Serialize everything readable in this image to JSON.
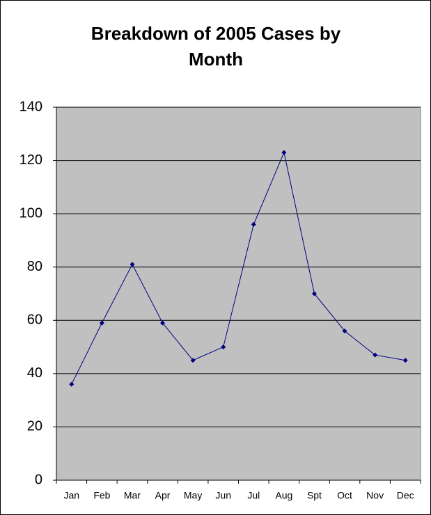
{
  "chart_data": {
    "type": "line",
    "title": "Breakdown of 2005 Cases by Month",
    "categories": [
      "Jan",
      "Feb",
      "Mar",
      "Apr",
      "May",
      "Jun",
      "Jul",
      "Aug",
      "Spt",
      "Oct",
      "Nov",
      "Dec"
    ],
    "values": [
      36,
      59,
      81,
      59,
      45,
      50,
      96,
      123,
      70,
      56,
      47,
      45
    ],
    "color": "#000080",
    "plot_background": "#c0c0c0",
    "ylim": [
      0,
      140
    ],
    "yticks": [
      0,
      20,
      40,
      60,
      80,
      100,
      120,
      140
    ],
    "grid": true
  }
}
